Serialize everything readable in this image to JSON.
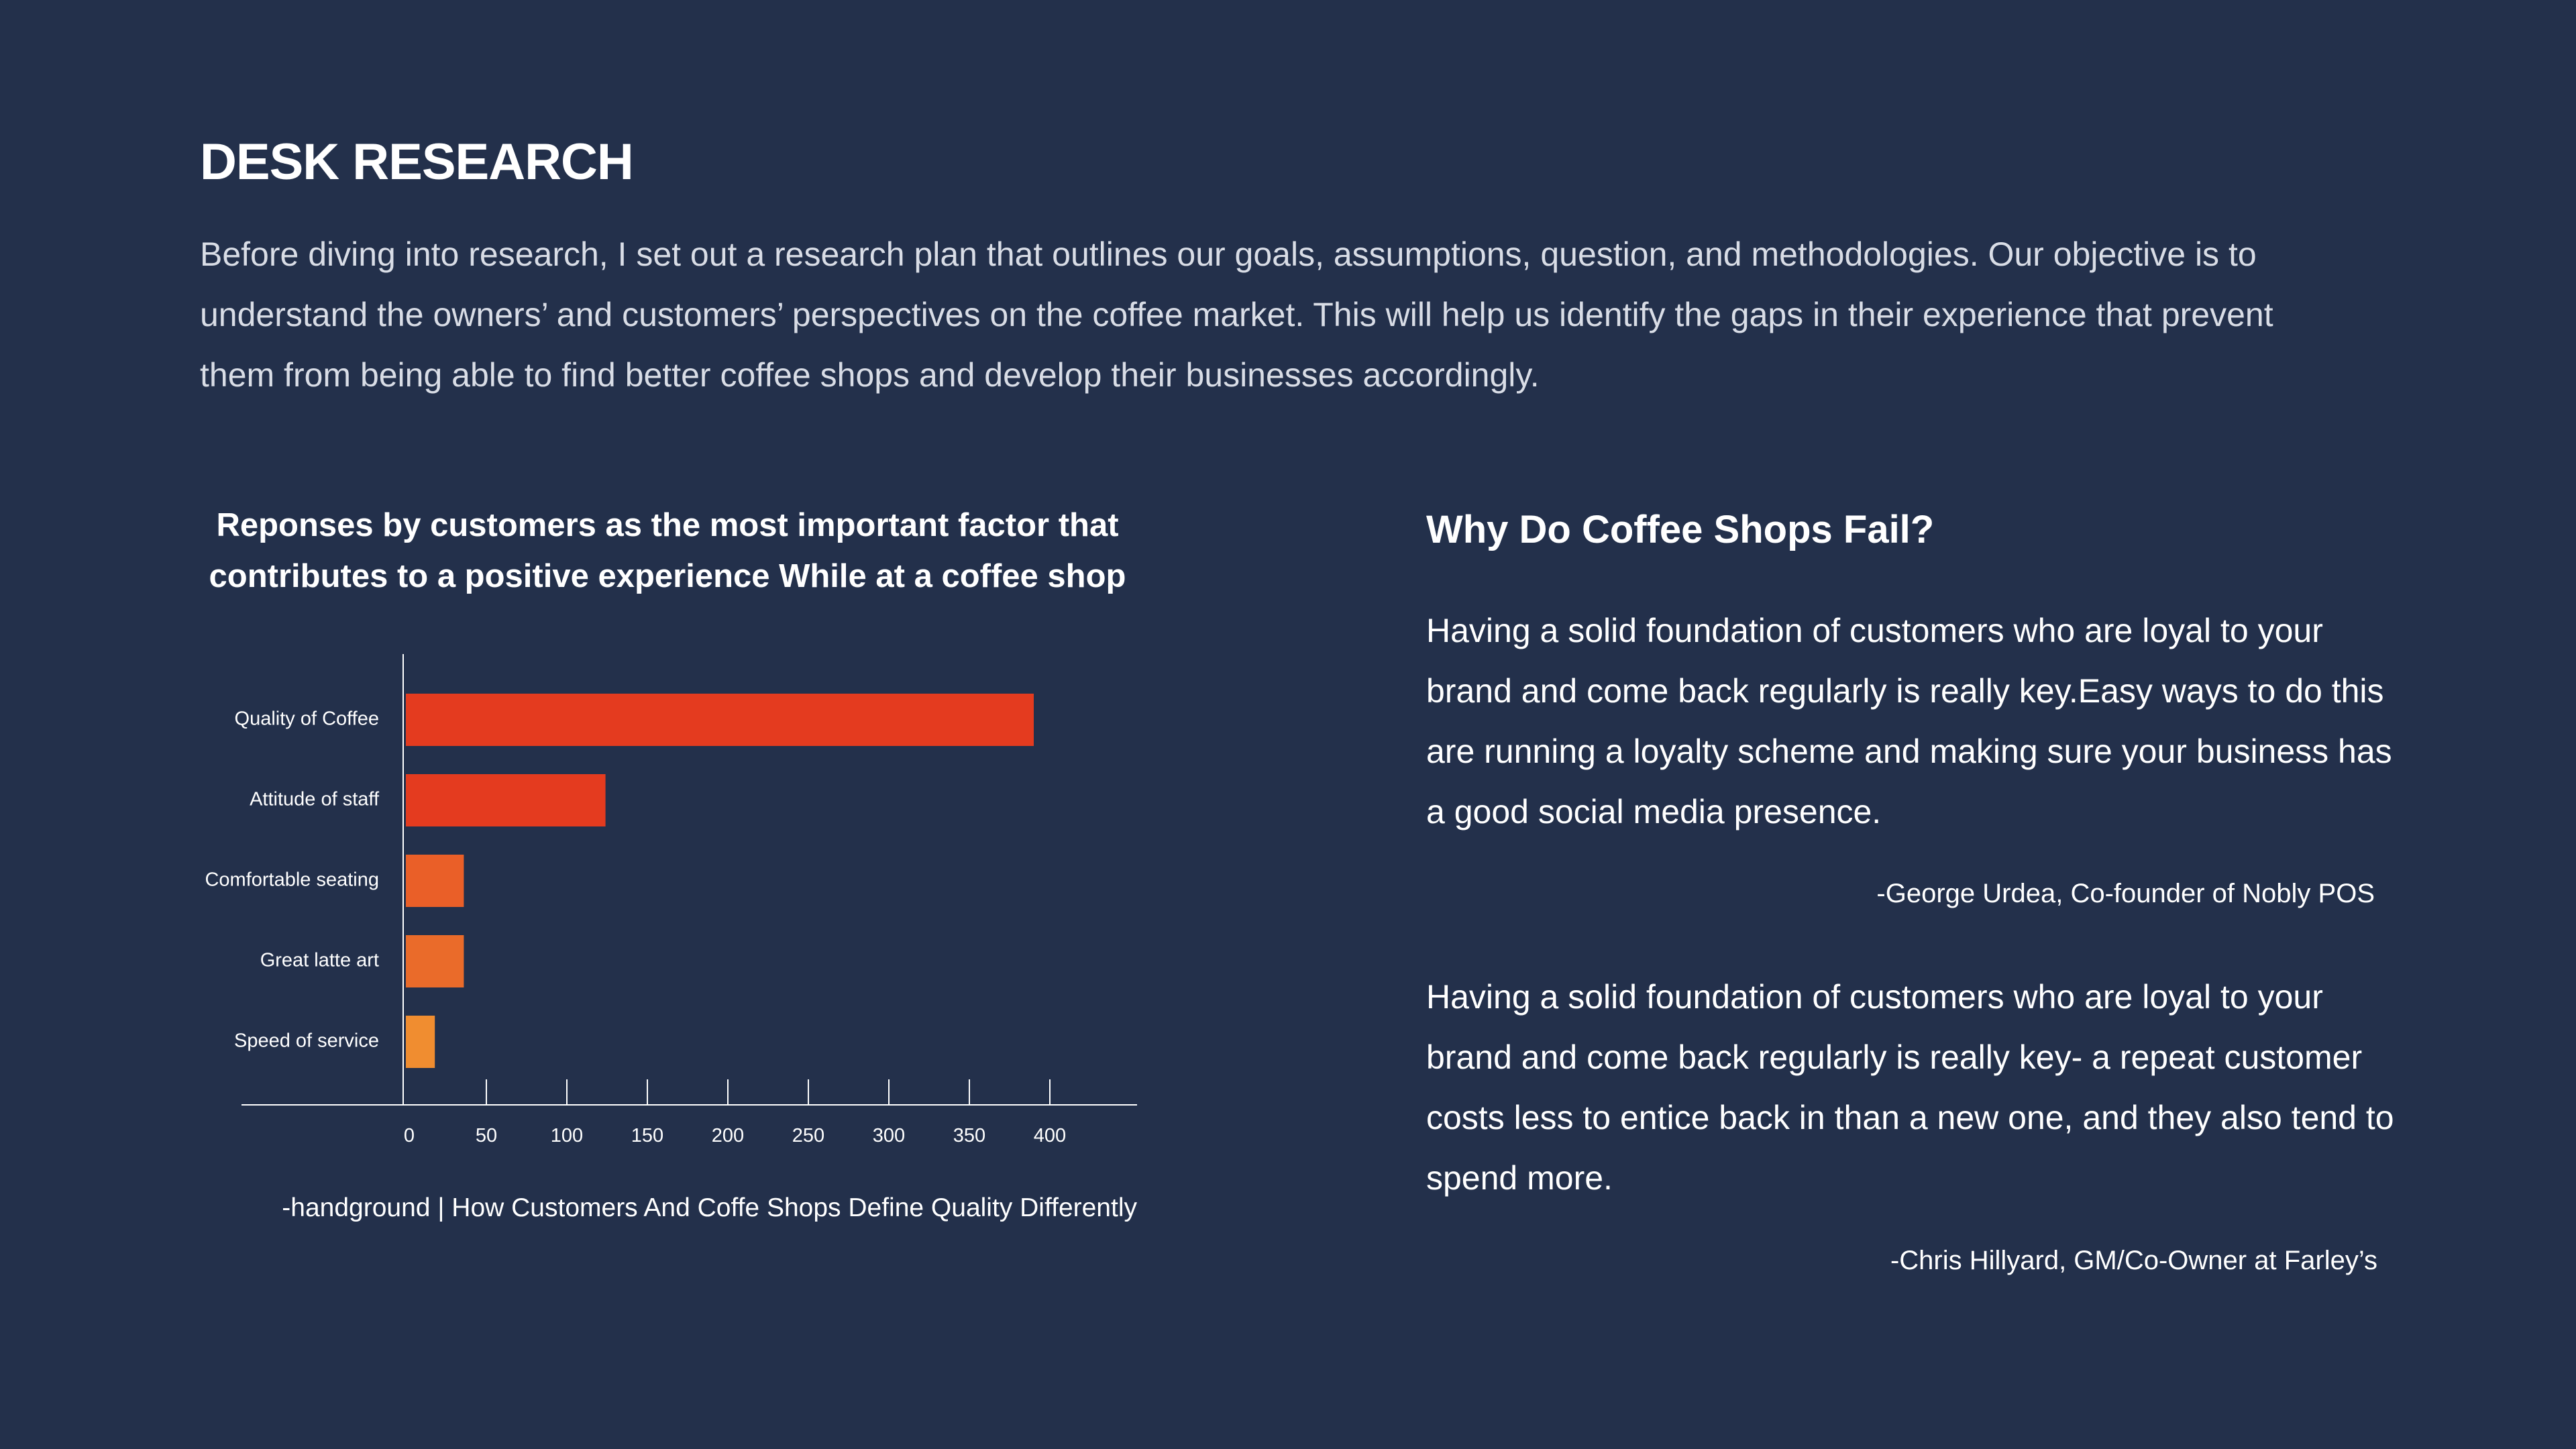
{
  "section": {
    "title": "DESK RESEARCH",
    "intro": "Before diving into research, I set out a research plan that outlines our goals, assumptions, question, and methodologies. Our objective is to understand the owners’ and customers’ perspectives on the coffee market. This will help us identify the gaps in their experience that prevent them from being able to find better coffee shops and develop their businesses accordingly."
  },
  "chart": {
    "caption": "-handground | How Customers And Coffe Shops Define Quality Differently"
  },
  "chart_data": {
    "type": "bar",
    "orientation": "horizontal",
    "title": "Reponses by customers as the most important factor that contributes to a positive experience While at a coffee shop",
    "categories": [
      "Quality of Coffee",
      "Attitude of staff",
      "Comfortable seating",
      "Great latte art",
      "Speed of service"
    ],
    "values": [
      390,
      124,
      36,
      36,
      18
    ],
    "colors": [
      "#e43b1f",
      "#e43b1f",
      "#ea5f28",
      "#ea6b2a",
      "#f08d30"
    ],
    "xticks": [
      0,
      50,
      100,
      150,
      200,
      250,
      300,
      350,
      400
    ],
    "xlim": [
      0,
      455
    ],
    "grid": false,
    "xlabel": "",
    "ylabel": ""
  },
  "right": {
    "title": "Why Do Coffee Shops Fail?",
    "quotes": [
      {
        "text": "Having a solid foundation of customers who are loyal to your brand and come back regularly is really key.Easy ways to do this are running a loyalty scheme and making sure your business has a good social media presence.",
        "author": "-George Urdea, Co-founder of Nobly POS"
      },
      {
        "text": "Having a solid foundation of customers who are loyal to your brand and come back regularly is really key- a repeat customer costs less to entice back in than a new one, and they also tend to spend more.",
        "author": "-Chris Hillyard, GM/Co-Owner at Farley’s"
      }
    ]
  }
}
